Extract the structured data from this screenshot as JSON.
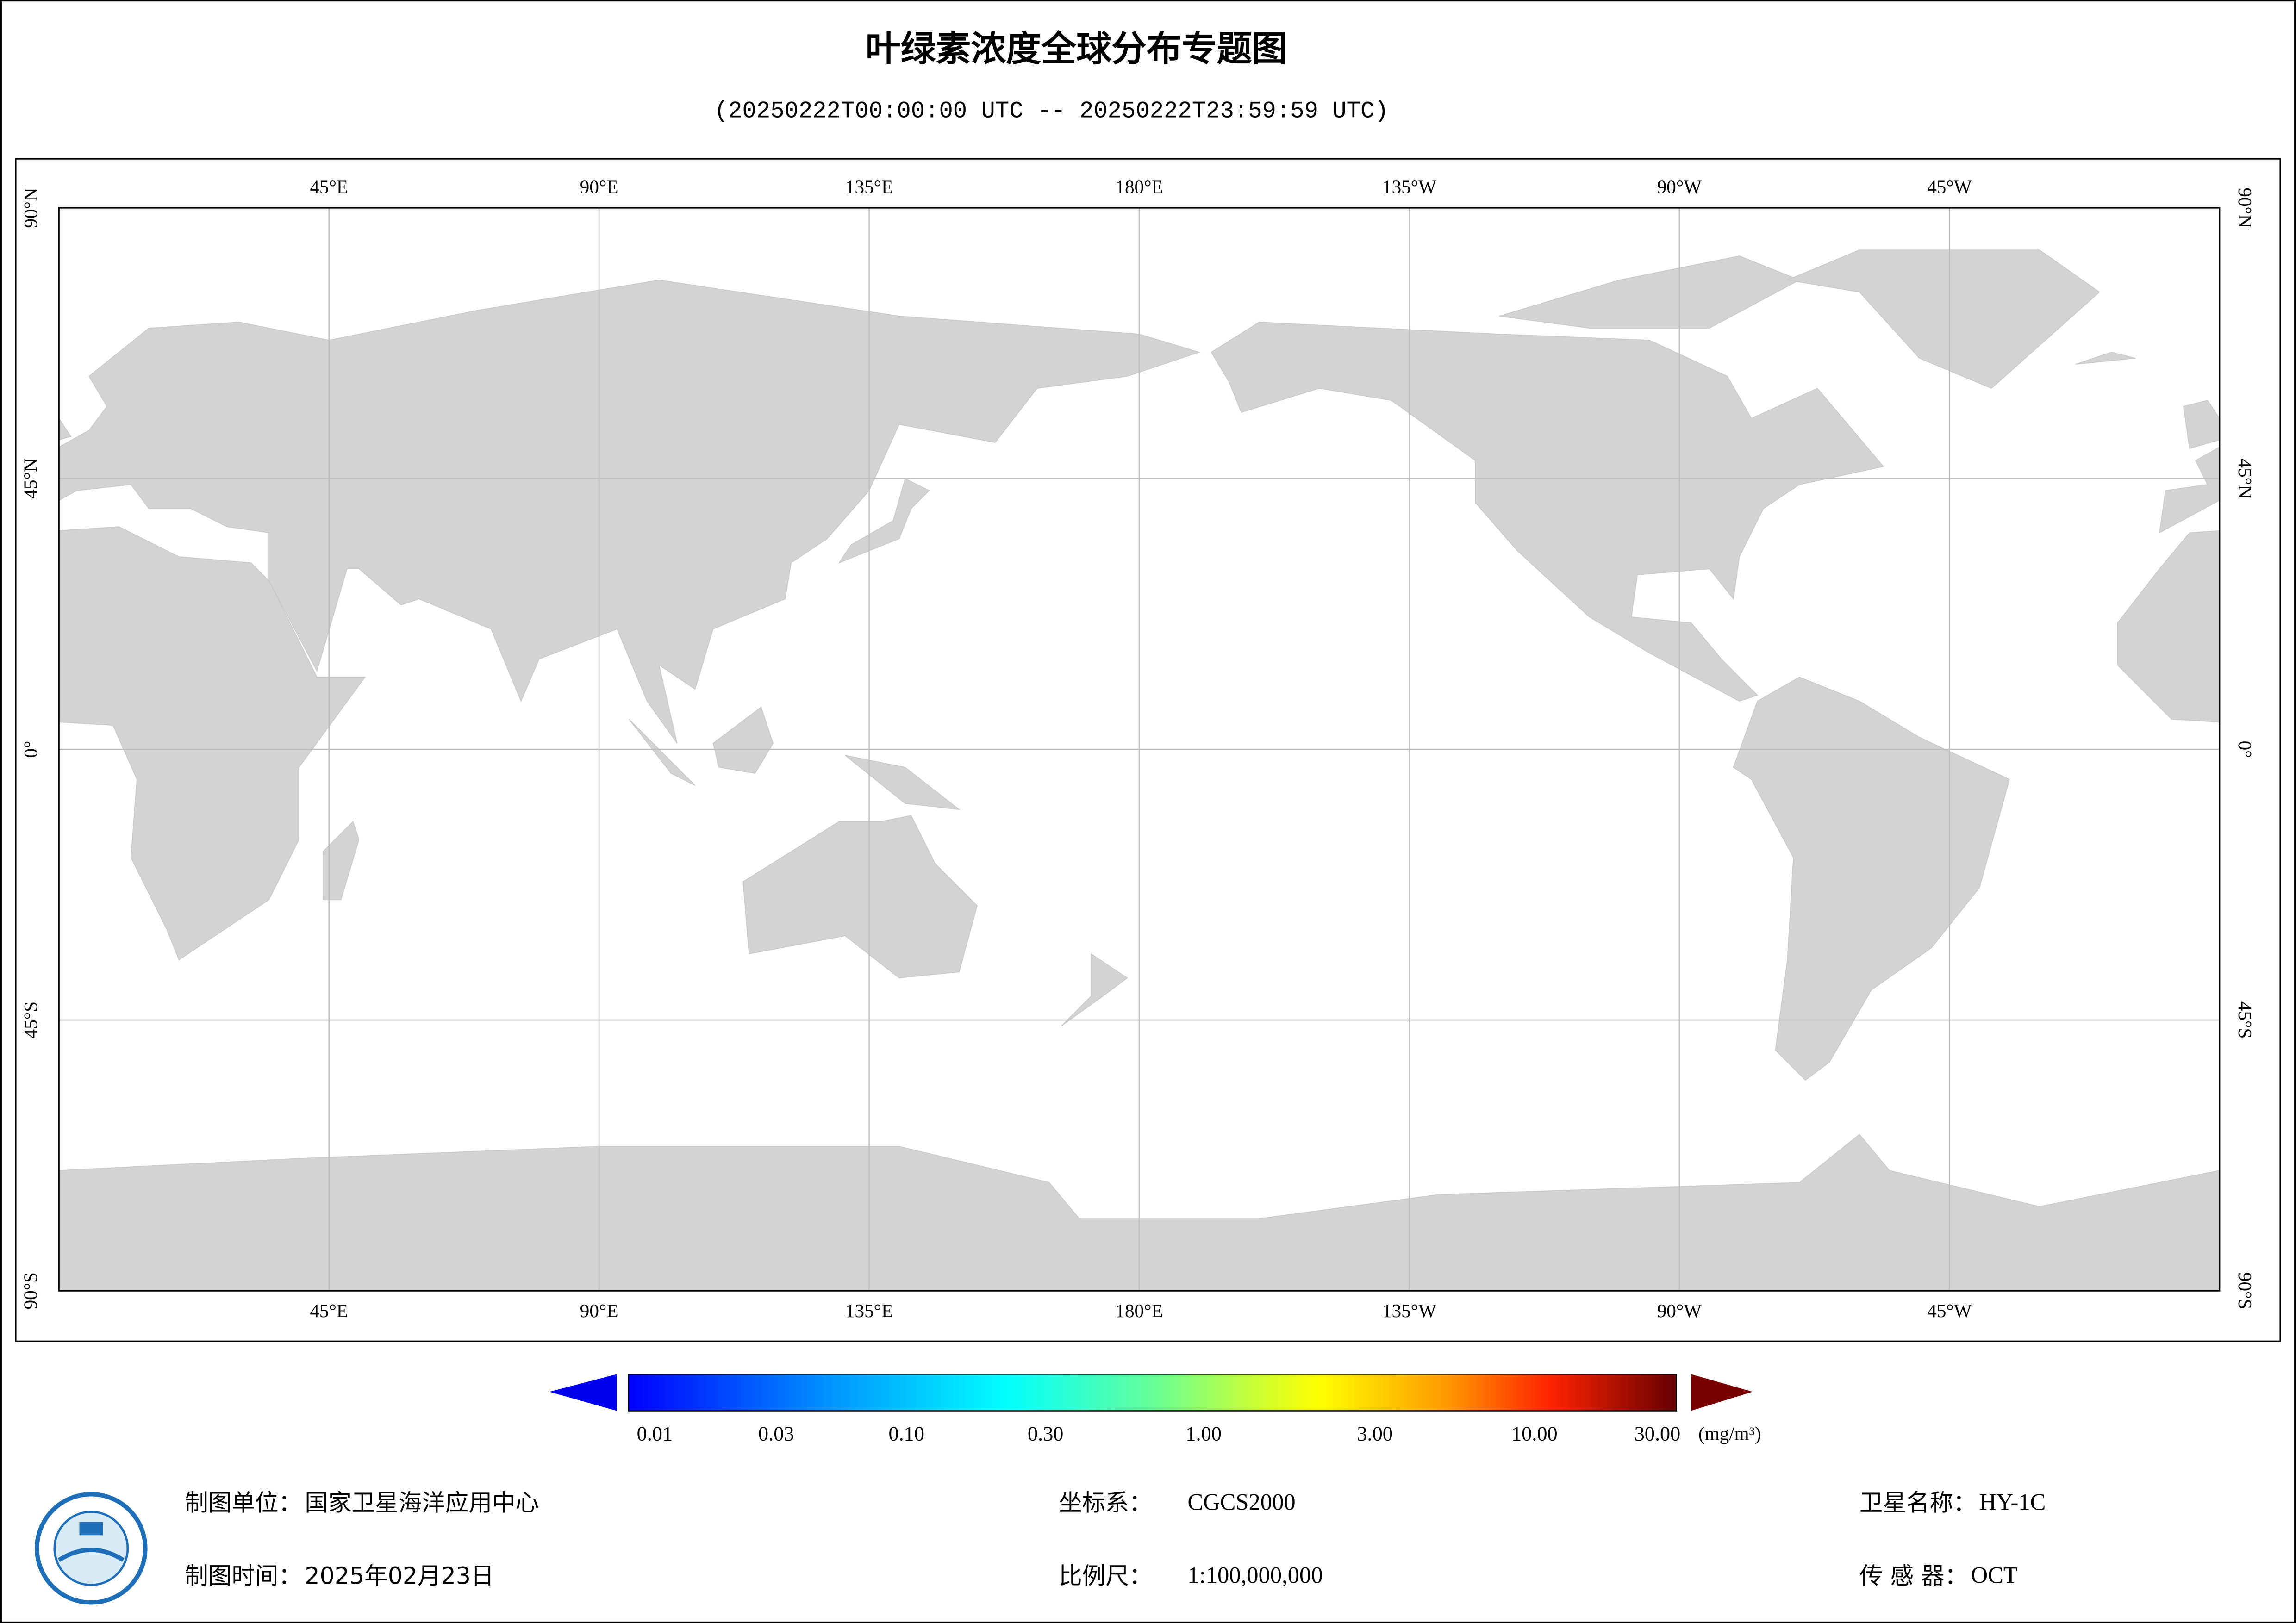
{
  "title": "叶绿素浓度全球分布专题图",
  "subtitle": "(20250222T00:00:00 UTC -- 20250222T23:59:59 UTC)",
  "map": {
    "longitude_labels": [
      "45°E",
      "90°E",
      "135°E",
      "180°E",
      "135°W",
      "90°W",
      "45°W"
    ],
    "latitude_labels": [
      "90°N",
      "45°N",
      "0°",
      "45°S",
      "90°S"
    ]
  },
  "colorbar": {
    "tick_labels": [
      "0.01",
      "0.03",
      "0.10",
      "0.30",
      "1.00",
      "3.00",
      "10.00",
      "30.00"
    ],
    "unit": "(mg/m³)"
  },
  "footer": {
    "items": [
      {
        "label": "制图单位：",
        "value": "国家卫星海洋应用中心"
      },
      {
        "label": "制图时间：",
        "value": "2025年02月23日"
      },
      {
        "label": "坐标系：",
        "value": "CGCS2000"
      },
      {
        "label": "比例尺：",
        "value": "1:100,000,000"
      },
      {
        "label": "卫星名称：",
        "value": "HY-1C"
      },
      {
        "label": "传 感 器：",
        "value": "OCT"
      }
    ]
  }
}
